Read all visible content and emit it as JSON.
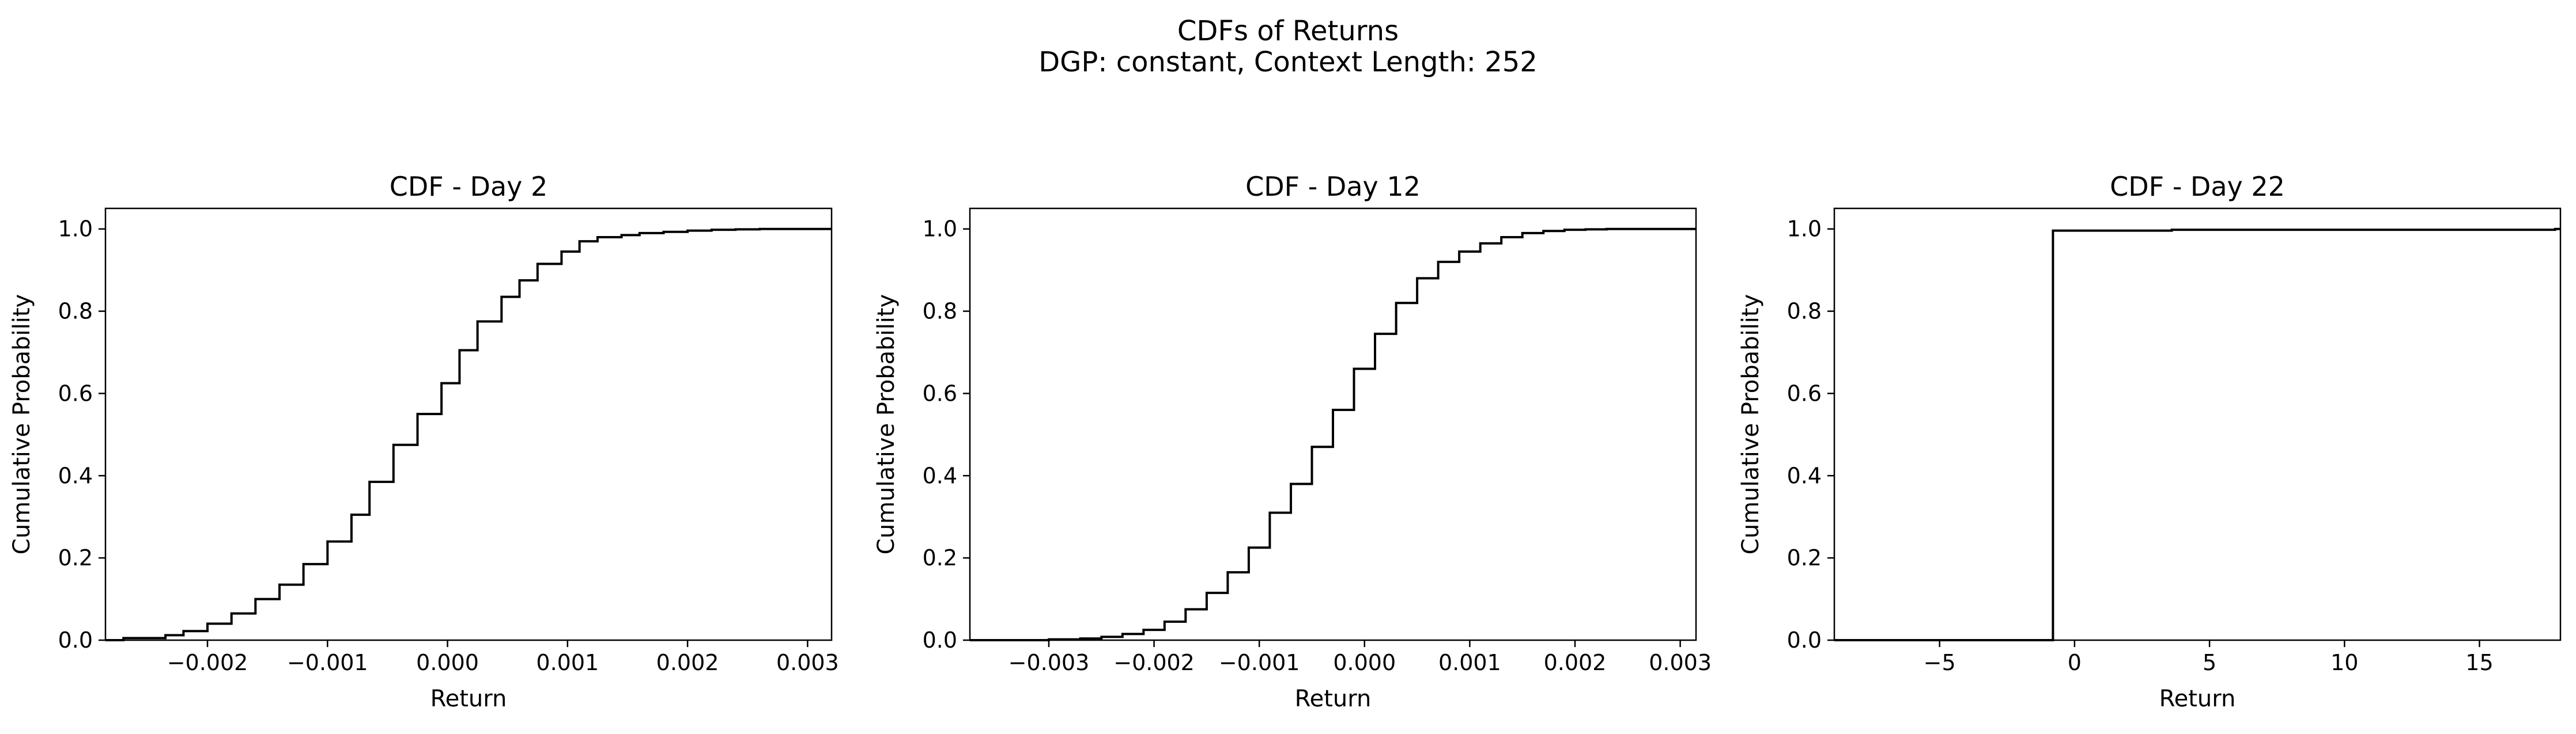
{
  "figure": {
    "title": "CDFs of Returns",
    "subtitle": "DGP: constant, Context Length: 252"
  },
  "chart_data": [
    {
      "type": "line",
      "title": "CDF - Day 2",
      "xlabel": "Return",
      "ylabel": "Cumulative Probability",
      "xlim": [
        -0.00285,
        0.0032
      ],
      "ylim": [
        0.0,
        1.05
      ],
      "xticks": [
        -0.002,
        -0.001,
        0.0,
        0.001,
        0.002,
        0.003
      ],
      "xtick_labels": [
        "−0.002",
        "−0.001",
        "0.000",
        "0.001",
        "0.002",
        "0.003"
      ],
      "yticks": [
        0.0,
        0.2,
        0.4,
        0.6,
        0.8,
        1.0
      ],
      "ytick_labels": [
        "0.0",
        "0.2",
        "0.4",
        "0.6",
        "0.8",
        "1.0"
      ],
      "grid": false,
      "series": [
        {
          "step": "post",
          "color": "#000000",
          "x": [
            -0.00285,
            -0.0027,
            -0.0025,
            -0.00235,
            -0.0022,
            -0.002,
            -0.0018,
            -0.0016,
            -0.0014,
            -0.0012,
            -0.001,
            -0.0008,
            -0.00065,
            -0.00045,
            -0.00025,
            -5e-05,
            0.0001,
            0.00025,
            0.00045,
            0.0006,
            0.00075,
            0.00095,
            0.0011,
            0.00125,
            0.00145,
            0.0016,
            0.0018,
            0.002,
            0.0022,
            0.0024,
            0.0026,
            0.0028,
            0.0032
          ],
          "y": [
            0.0,
            0.005,
            0.005,
            0.012,
            0.022,
            0.04,
            0.065,
            0.1,
            0.135,
            0.185,
            0.24,
            0.305,
            0.385,
            0.475,
            0.55,
            0.625,
            0.705,
            0.775,
            0.835,
            0.875,
            0.915,
            0.945,
            0.97,
            0.98,
            0.985,
            0.99,
            0.993,
            0.996,
            0.998,
            0.999,
            1.0,
            1.0,
            1.0
          ]
        }
      ]
    },
    {
      "type": "line",
      "title": "CDF - Day 12",
      "xlabel": "Return",
      "ylabel": "Cumulative Probability",
      "xlim": [
        -0.00375,
        0.00315
      ],
      "ylim": [
        0.0,
        1.05
      ],
      "xticks": [
        -0.003,
        -0.002,
        -0.001,
        0.0,
        0.001,
        0.002,
        0.003
      ],
      "xtick_labels": [
        "−0.003",
        "−0.002",
        "−0.001",
        "0.000",
        "0.001",
        "0.002",
        "0.003"
      ],
      "yticks": [
        0.0,
        0.2,
        0.4,
        0.6,
        0.8,
        1.0
      ],
      "ytick_labels": [
        "0.0",
        "0.2",
        "0.4",
        "0.6",
        "0.8",
        "1.0"
      ],
      "grid": false,
      "series": [
        {
          "step": "post",
          "color": "#000000",
          "x": [
            -0.00375,
            -0.003,
            -0.0027,
            -0.0025,
            -0.0023,
            -0.0021,
            -0.0019,
            -0.0017,
            -0.0015,
            -0.0013,
            -0.0011,
            -0.0009,
            -0.0007,
            -0.0005,
            -0.0003,
            -0.0001,
            0.0001,
            0.0003,
            0.0005,
            0.0007,
            0.0009,
            0.0011,
            0.0013,
            0.0015,
            0.0017,
            0.0019,
            0.0021,
            0.0023,
            0.0025,
            0.0027,
            0.0029,
            0.00315
          ],
          "y": [
            0.0,
            0.002,
            0.004,
            0.008,
            0.015,
            0.025,
            0.045,
            0.075,
            0.115,
            0.165,
            0.225,
            0.31,
            0.38,
            0.47,
            0.56,
            0.66,
            0.745,
            0.82,
            0.88,
            0.92,
            0.945,
            0.965,
            0.98,
            0.99,
            0.995,
            0.998,
            0.999,
            1.0,
            1.0,
            1.0,
            1.0,
            1.0
          ]
        }
      ]
    },
    {
      "type": "line",
      "title": "CDF - Day 22",
      "xlabel": "Return",
      "ylabel": "Cumulative Probability",
      "xlim": [
        -8.9,
        18.0
      ],
      "ylim": [
        0.0,
        1.05
      ],
      "xticks": [
        -5,
        0,
        5,
        10,
        15
      ],
      "xtick_labels": [
        "−5",
        "0",
        "5",
        "10",
        "15"
      ],
      "yticks": [
        0.0,
        0.2,
        0.4,
        0.6,
        0.8,
        1.0
      ],
      "ytick_labels": [
        "0.0",
        "0.2",
        "0.4",
        "0.6",
        "0.8",
        "1.0"
      ],
      "grid": false,
      "series": [
        {
          "step": "post",
          "color": "#000000",
          "x": [
            -8.9,
            -0.8,
            3.6,
            17.8,
            18.0
          ],
          "y": [
            0.0,
            0.996,
            0.998,
            1.0,
            1.0
          ]
        }
      ]
    }
  ]
}
